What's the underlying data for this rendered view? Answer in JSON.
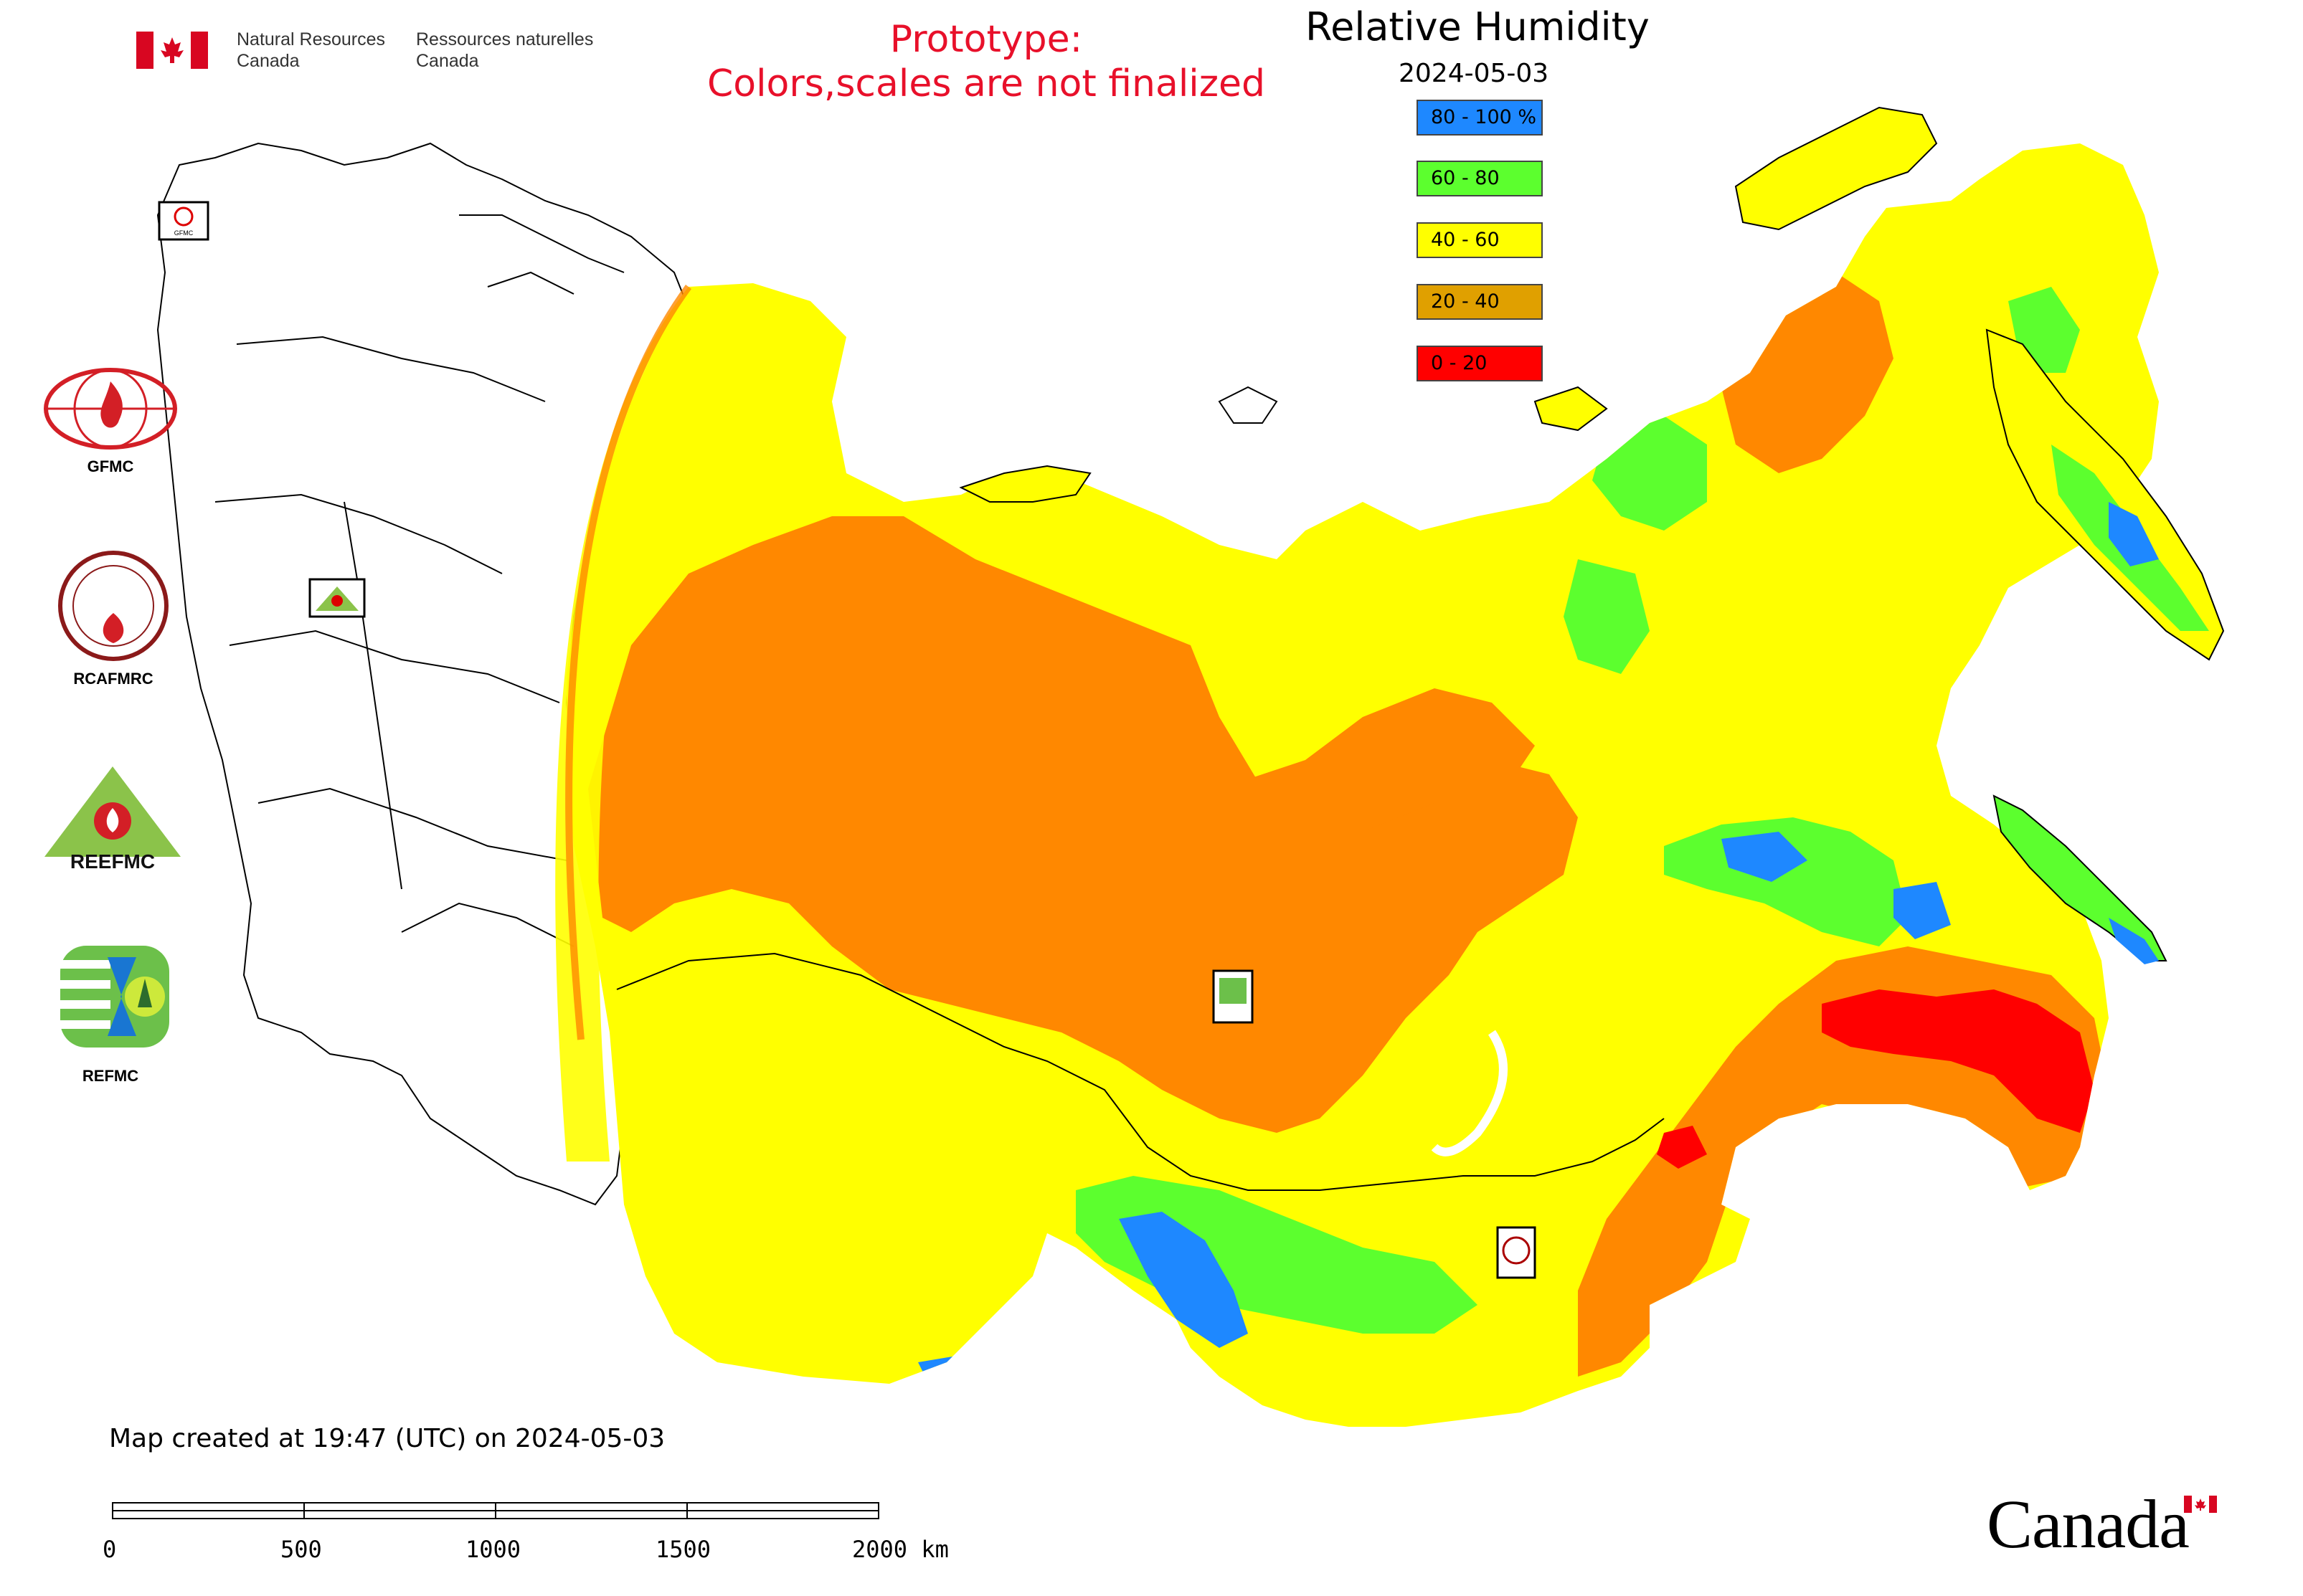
{
  "header": {
    "org_en_line1": "Natural Resources",
    "org_en_line2": "Canada",
    "org_fr_line1": "Ressources naturelles",
    "org_fr_line2": "Canada",
    "prototype_line1": "Prototype:",
    "prototype_line2": "Colors,scales are not finalized"
  },
  "map": {
    "title": "Relative Humidity",
    "date": "2024-05-03",
    "legend": [
      {
        "label": "80 - 100 %",
        "color": "#1e88ff"
      },
      {
        "label": "60 - 80",
        "color": "#5cff2e"
      },
      {
        "label": "40 - 60",
        "color": "#ffff00"
      },
      {
        "label": "20 - 40",
        "color": "#e0a000"
      },
      {
        "label": "0 - 20",
        "color": "#ff0000"
      }
    ],
    "colors": {
      "orange_field": "#ff8800",
      "boundary": "#000000"
    }
  },
  "logos": {
    "gfmc": "GFMC",
    "rcafmrc": "RCAFMRC",
    "reefmc_mark": "REEFMC",
    "refmc": "REFMC"
  },
  "footer": {
    "created_text": "Map created at 19:47 (UTC) on 2024-05-03",
    "scale_labels": [
      "0",
      "500",
      "1000",
      "1500",
      "2000 km"
    ],
    "wordmark": "Canada"
  }
}
